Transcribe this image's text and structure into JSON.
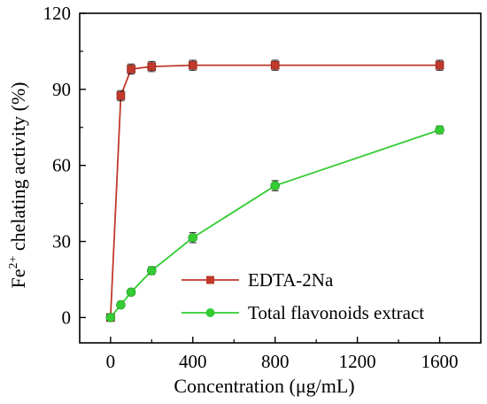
{
  "chart_data": {
    "type": "line",
    "xlabel": "Concentration (μg/mL)",
    "ylabel_prefix": "Fe",
    "ylabel_sup": "2+",
    "ylabel_suffix": " chelating activity (%)",
    "xlim": [
      -150,
      1800
    ],
    "ylim": [
      -10,
      120
    ],
    "xticks": [
      0,
      400,
      800,
      1200,
      1600
    ],
    "yticks": [
      0,
      30,
      60,
      90,
      120
    ],
    "legend_position": "bottom-right",
    "series": [
      {
        "name": "EDTA-2Na",
        "color": "#c0392b",
        "marker": "square",
        "x": [
          0,
          50,
          100,
          200,
          400,
          800,
          1600
        ],
        "y": [
          0,
          87.5,
          98,
          99,
          99.5,
          99.5,
          99.5
        ],
        "err": [
          0,
          2,
          2,
          2,
          2,
          2,
          2
        ]
      },
      {
        "name": "Total flavonoids extract",
        "color": "#33cc33",
        "marker": "circle",
        "x": [
          0,
          50,
          100,
          200,
          400,
          800,
          1600
        ],
        "y": [
          0,
          5,
          10,
          18.5,
          31.5,
          52,
          74
        ],
        "err": [
          0,
          1,
          1,
          1.5,
          2,
          2,
          1.5
        ]
      }
    ]
  }
}
